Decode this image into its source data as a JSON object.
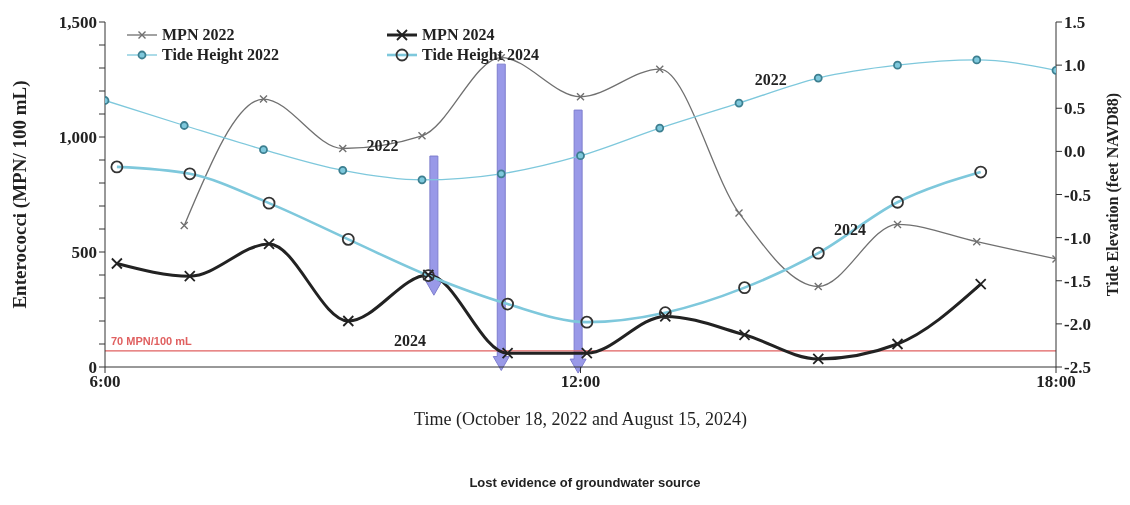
{
  "chart_data": {
    "type": "line",
    "xlabel": "Time (October 18, 2022 and August 15, 2024)",
    "ylabel": "Enterococci (MPN/ 100 mL)",
    "y2label": "Tide Elevation (feet NAVD88)",
    "xlim": [
      6,
      18
    ],
    "xticks": [
      {
        "value": 6,
        "label": "6:00"
      },
      {
        "value": 12,
        "label": "12:00"
      },
      {
        "value": 18,
        "label": "18:00"
      }
    ],
    "ylim": [
      0,
      1500
    ],
    "yticks": [
      {
        "value": 0,
        "label": "0"
      },
      {
        "value": 100,
        "label": null
      },
      {
        "value": 200,
        "label": null
      },
      {
        "value": 300,
        "label": null
      },
      {
        "value": 400,
        "label": null
      },
      {
        "value": 500,
        "label": "500"
      },
      {
        "value": 600,
        "label": null
      },
      {
        "value": 700,
        "label": null
      },
      {
        "value": 800,
        "label": null
      },
      {
        "value": 900,
        "label": null
      },
      {
        "value": 1000,
        "label": "1,000"
      },
      {
        "value": 1100,
        "label": null
      },
      {
        "value": 1200,
        "label": null
      },
      {
        "value": 1300,
        "label": null
      },
      {
        "value": 1400,
        "label": null
      },
      {
        "value": 1500,
        "label": "1,500"
      }
    ],
    "y2lim": [
      -2.5,
      1.5
    ],
    "y2ticks": [
      {
        "value": -2.5,
        "label": "-2.5"
      },
      {
        "value": -2,
        "label": "-2.0"
      },
      {
        "value": -1.5,
        "label": "-1.5"
      },
      {
        "value": -1,
        "label": "-1.0"
      },
      {
        "value": -0.5,
        "label": "-0.5"
      },
      {
        "value": 0,
        "label": "0.0"
      },
      {
        "value": 0.5,
        "label": "0.5"
      },
      {
        "value": 1,
        "label": "1.0"
      },
      {
        "value": 1.5,
        "label": "1.5"
      }
    ],
    "grid": false,
    "legend": "top left",
    "line_style": "solid",
    "series": [
      {
        "name": "MPN 2022",
        "color": "#707070",
        "marker": "cross",
        "x": [
          7,
          8,
          9,
          10,
          11,
          12,
          13,
          14,
          15,
          16,
          17,
          18
        ],
        "values": [
          615,
          1165,
          950,
          1005,
          1345,
          1175,
          1295,
          670,
          350,
          620,
          545,
          470
        ]
      },
      {
        "name": "MPN 2024",
        "color": "#222222",
        "marker": "cross",
        "x": [
          6.15,
          7.07,
          8.07,
          9.07,
          10.08,
          11.08,
          12.08,
          13.07,
          14.07,
          15,
          16,
          17.05
        ],
        "values": [
          450,
          395,
          535,
          200,
          400,
          60,
          60,
          220,
          140,
          35,
          100,
          360
        ]
      },
      {
        "name": "Tide Height 2022",
        "color": "#7ec8dc",
        "marker": "circle",
        "axis": "y2",
        "x": [
          6,
          7,
          8,
          9,
          10,
          11,
          12,
          13,
          14,
          15,
          16,
          17,
          18
        ],
        "values": [
          0.59,
          0.3,
          0.02,
          -0.22,
          -0.33,
          -0.26,
          -0.05,
          0.27,
          0.56,
          0.85,
          1.0,
          1.06,
          0.94
        ]
      },
      {
        "name": "Tide Height 2024",
        "color": "#7ec8dc",
        "marker": "circle",
        "axis": "y2",
        "x": [
          6.15,
          7.07,
          8.07,
          9.07,
          10.08,
          11.08,
          12.08,
          13.07,
          14.07,
          15,
          16,
          17.05
        ],
        "values": [
          -0.18,
          -0.26,
          -0.6,
          -1.02,
          -1.44,
          -1.77,
          -1.98,
          -1.87,
          -1.58,
          -1.18,
          -0.59,
          -0.24
        ]
      }
    ],
    "ref_lines": [
      {
        "axis": "y",
        "value": 70,
        "label": "70 MPN/100 mL",
        "color": "#e06060"
      }
    ],
    "annotations": [
      "2022",
      "2024",
      "2022",
      "2024",
      "Lost evidence of groundwater source"
    ]
  }
}
